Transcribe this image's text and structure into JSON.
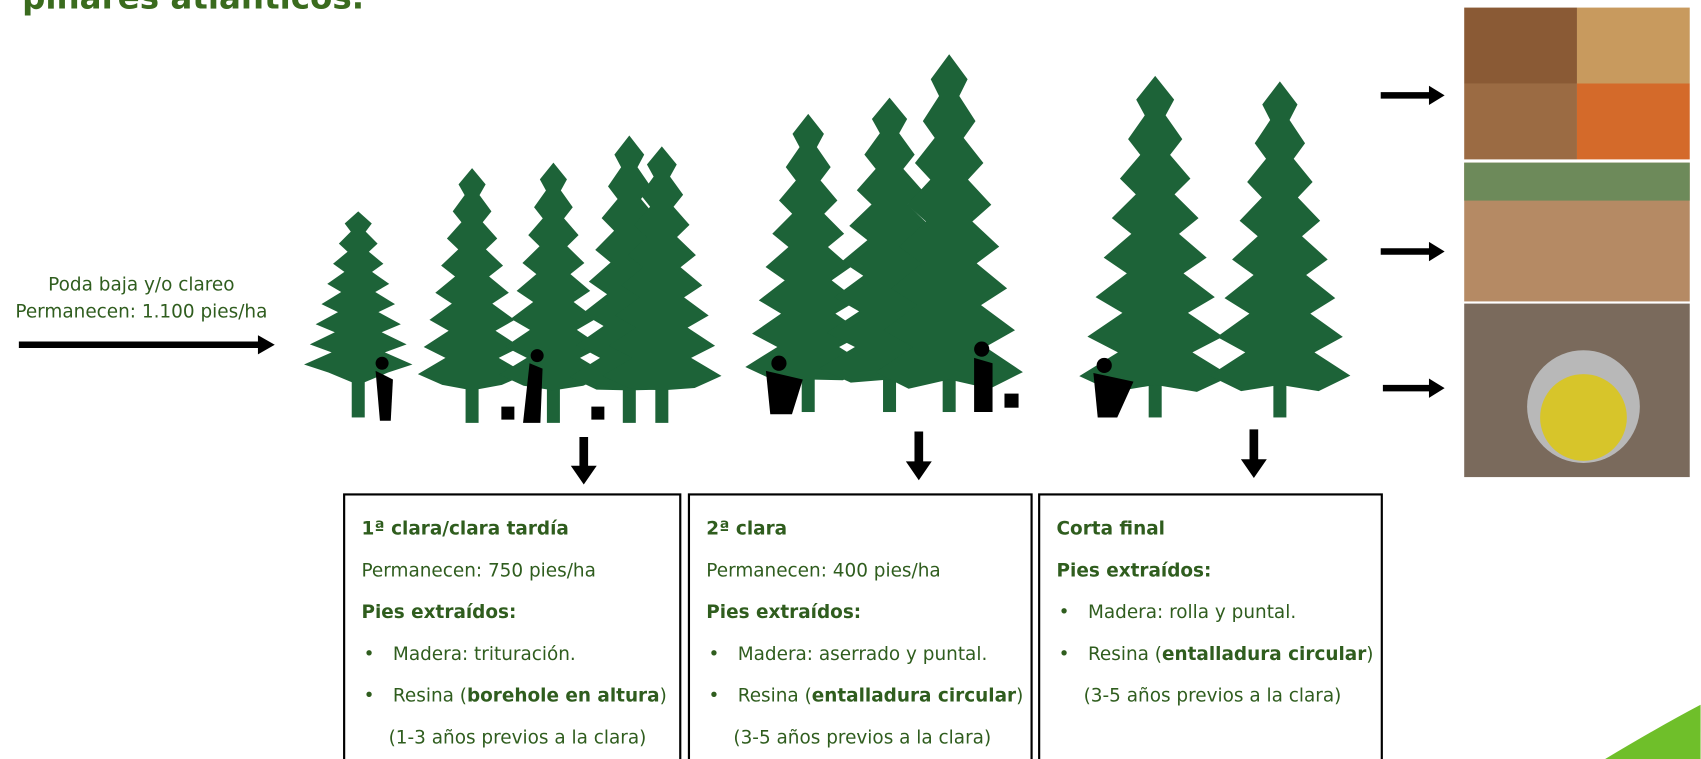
{
  "title": "pinares atlánticos.",
  "intro": {
    "lines": [
      "Poda baja y/o clareo",
      "Permanecen: 1.100 pies/ha"
    ]
  },
  "boxes": [
    {
      "heading": "1ª clara/clara tardía",
      "remain": "Permanecen: 750 pies/ha",
      "extracted": "Pies extraídos:",
      "items": [
        {
          "text": "Madera: trituración."
        },
        {
          "text": "Resina (",
          "bold": "borehole en altura",
          "after": ")"
        }
      ],
      "note": "(1-3 años previos a la clara)"
    },
    {
      "heading": "2ª clara",
      "remain": "Permanecen: 400 pies/ha",
      "extracted": "Pies extraídos:",
      "items": [
        {
          "text": "Madera: aserrado y puntal."
        },
        {
          "text": "Resina (",
          "bold": "entalladura circular",
          "after": ")"
        }
      ],
      "note": "(3-5 años previos a la clara)"
    },
    {
      "heading": "Corta final",
      "extracted": "Pies extraídos:",
      "items": [
        {
          "text": "Madera: rolla y puntal."
        },
        {
          "text": "Resina (",
          "bold": "entalladura circular",
          "after": ")"
        }
      ],
      "note": "(3-5 años previos a la clara)"
    }
  ]
}
